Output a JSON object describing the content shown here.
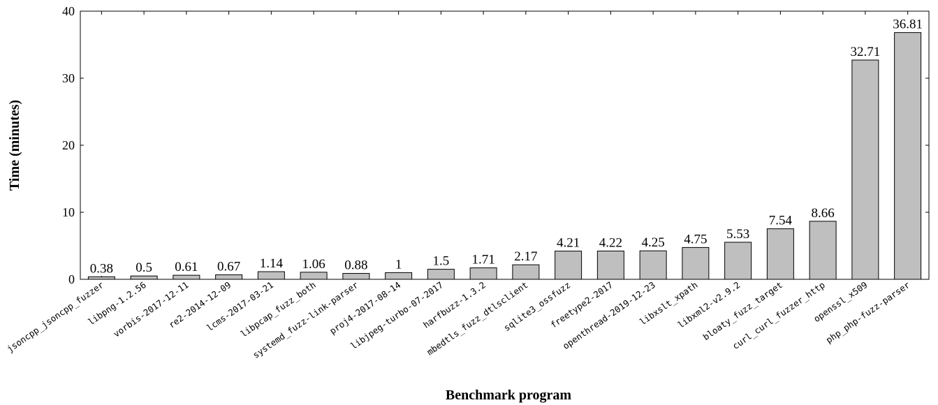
{
  "chart_data": {
    "type": "bar",
    "xlabel": "Benchmark program",
    "ylabel": "Time (minutes)",
    "ylim": [
      0,
      40
    ],
    "yticks": [
      0,
      10,
      20,
      30,
      40
    ],
    "grid": false,
    "bar_color": "#bfbfbf",
    "categories": [
      "jsoncpp_jsoncpp_fuzzer",
      "libpng-1.2.56",
      "vorbis-2017-12-11",
      "re2-2014-12-09",
      "lcms-2017-03-21",
      "libpcap_fuzz_both",
      "systemd_fuzz-link-parser",
      "proj4-2017-08-14",
      "libjpeg-turbo-07-2017",
      "harfbuzz-1.3.2",
      "mbedtls_fuzz_dtlsclient",
      "sqlite3_ossfuzz",
      "freetype2-2017",
      "openthread-2019-12-23",
      "libxslt_xpath",
      "libxml2-v2.9.2",
      "bloaty_fuzz_target",
      "curl_curl_fuzzer_http",
      "openssl_x509",
      "php_php-fuzz-parser"
    ],
    "values": [
      0.38,
      0.5,
      0.61,
      0.67,
      1.14,
      1.06,
      0.88,
      1,
      1.5,
      1.71,
      2.17,
      4.21,
      4.22,
      4.25,
      4.75,
      5.53,
      7.54,
      8.66,
      32.71,
      36.81
    ],
    "value_labels": [
      "0.38",
      "0.5",
      "0.61",
      "0.67",
      "1.14",
      "1.06",
      "0.88",
      "1",
      "1.5",
      "1.71",
      "2.17",
      "4.21",
      "4.22",
      "4.25",
      "4.75",
      "5.53",
      "7.54",
      "8.66",
      "32.71",
      "36.81"
    ]
  }
}
